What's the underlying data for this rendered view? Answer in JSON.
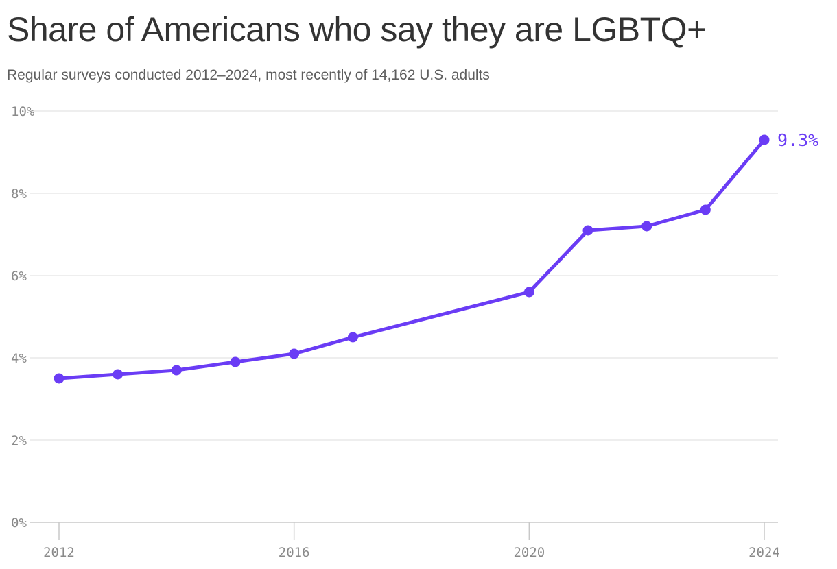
{
  "title": "Share of Americans who say they are LGBTQ+",
  "subtitle": "Regular surveys conducted 2012–2024, most recently of 14,162 U.S. adults",
  "colors": {
    "line": "#6a3cf5",
    "grid": "#e3e3e3",
    "axis": "#c8c8c8",
    "tick_text": "#8a8a8a"
  },
  "chart_data": {
    "type": "line",
    "title": "Share of Americans who say they are LGBTQ+",
    "subtitle": "Regular surveys conducted 2012–2024, most recently of 14,162 U.S. adults",
    "xlabel": "",
    "ylabel": "",
    "x": [
      2012,
      2013,
      2014,
      2015,
      2016,
      2017,
      2020,
      2021,
      2022,
      2023,
      2024
    ],
    "series": [
      {
        "values": [
          3.5,
          3.6,
          3.7,
          3.9,
          4.1,
          4.5,
          5.6,
          7.1,
          7.2,
          7.6,
          9.3
        ]
      }
    ],
    "xlim": [
      2012,
      2024
    ],
    "ylim": [
      0,
      10
    ],
    "x_ticks": [
      {
        "value": 2012,
        "label": "2012"
      },
      {
        "value": 2016,
        "label": "2016"
      },
      {
        "value": 2020,
        "label": "2020"
      },
      {
        "value": 2024,
        "label": "2024"
      }
    ],
    "y_ticks": [
      {
        "value": 0,
        "label": "0%"
      },
      {
        "value": 2,
        "label": "2%"
      },
      {
        "value": 4,
        "label": "4%"
      },
      {
        "value": 6,
        "label": "6%"
      },
      {
        "value": 8,
        "label": "8%"
      },
      {
        "value": 10,
        "label": "10%"
      }
    ],
    "end_label": "9.3%",
    "grid": true,
    "legend": "none"
  }
}
